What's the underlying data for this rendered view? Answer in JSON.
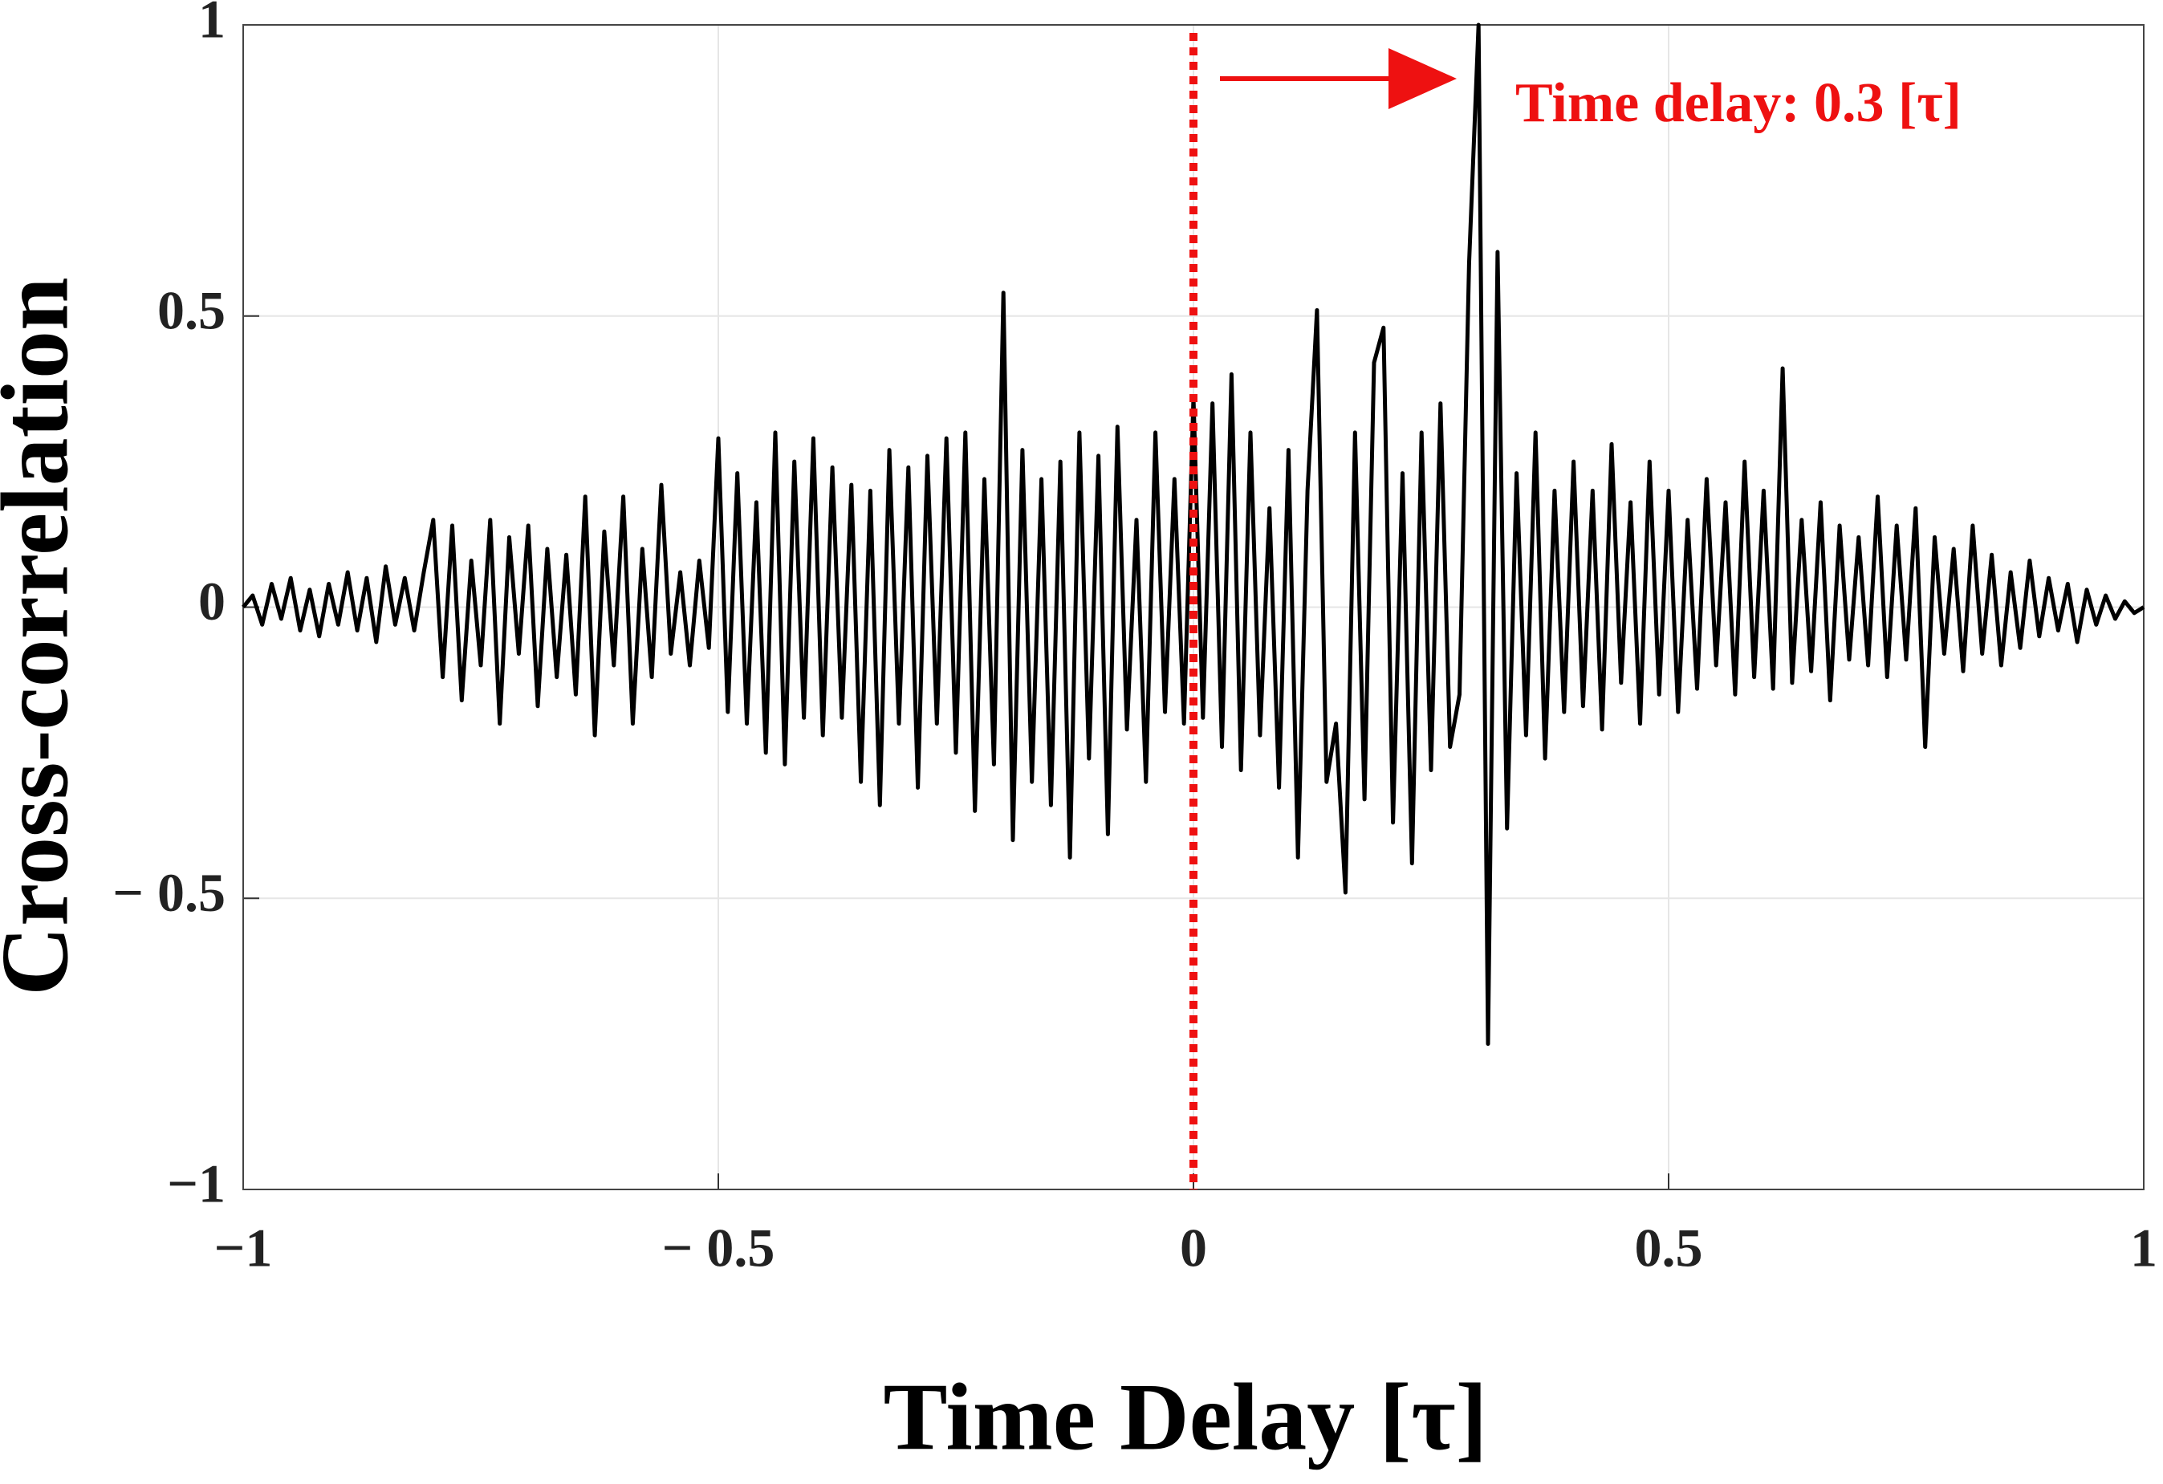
{
  "chart_data": {
    "type": "line",
    "xlabel": "Time Delay [τ]",
    "ylabel": "Cross-correlation",
    "annotation": "Time delay: 0.3 [τ]",
    "annotation_color": "#ee1111",
    "vline": 0,
    "vline_color": "#ee1111",
    "grid": true,
    "xlim": [
      -1,
      1
    ],
    "ylim": [
      -1,
      1
    ],
    "xticks": [
      {
        "value": -1,
        "label": "−1"
      },
      {
        "value": -0.5,
        "label": "− 0.5"
      },
      0,
      0.5,
      1
    ],
    "yticks": [
      {
        "value": -1,
        "label": "−1"
      },
      {
        "value": -0.5,
        "label": "− 0.5"
      },
      0,
      0.5,
      1
    ],
    "x": [
      -1,
      -0.99,
      -0.98,
      -0.97,
      -0.96,
      -0.95,
      -0.94,
      -0.93,
      -0.92,
      -0.91,
      -0.9,
      -0.89,
      -0.88,
      -0.87,
      -0.86,
      -0.85,
      -0.84,
      -0.83,
      -0.82,
      -0.81,
      -0.8,
      -0.79,
      -0.78,
      -0.77,
      -0.76,
      -0.75,
      -0.74,
      -0.73,
      -0.72,
      -0.71,
      -0.7,
      -0.69,
      -0.68,
      -0.67,
      -0.66,
      -0.65,
      -0.64,
      -0.63,
      -0.62,
      -0.61,
      -0.6,
      -0.59,
      -0.58,
      -0.57,
      -0.56,
      -0.55,
      -0.54,
      -0.53,
      -0.52,
      -0.51,
      -0.5,
      -0.49,
      -0.48,
      -0.47,
      -0.46,
      -0.45,
      -0.44,
      -0.43,
      -0.42,
      -0.41,
      -0.4,
      -0.39,
      -0.38,
      -0.37,
      -0.36,
      -0.35,
      -0.34,
      -0.33,
      -0.32,
      -0.31,
      -0.3,
      -0.29,
      -0.28,
      -0.27,
      -0.26,
      -0.25,
      -0.24,
      -0.23,
      -0.22,
      -0.21,
      -0.2,
      -0.19,
      -0.18,
      -0.17,
      -0.16,
      -0.15,
      -0.14,
      -0.13,
      -0.12,
      -0.11,
      -0.1,
      -0.09,
      -0.08,
      -0.07,
      -0.06,
      -0.05,
      -0.04,
      -0.03,
      -0.02,
      -0.01,
      0,
      0.01,
      0.02,
      0.03,
      0.04,
      0.05,
      0.06,
      0.07,
      0.08,
      0.09,
      0.1,
      0.11,
      0.12,
      0.13,
      0.14,
      0.15,
      0.16,
      0.17,
      0.18,
      0.19,
      0.2,
      0.21,
      0.22,
      0.23,
      0.24,
      0.25,
      0.26,
      0.27,
      0.28,
      0.29,
      0.3,
      0.31,
      0.32,
      0.33,
      0.34,
      0.35,
      0.36,
      0.37,
      0.38,
      0.39,
      0.4,
      0.41,
      0.42,
      0.43,
      0.44,
      0.45,
      0.46,
      0.47,
      0.48,
      0.49,
      0.5,
      0.51,
      0.52,
      0.53,
      0.54,
      0.55,
      0.56,
      0.57,
      0.58,
      0.59,
      0.6,
      0.61,
      0.62,
      0.63,
      0.64,
      0.65,
      0.66,
      0.67,
      0.68,
      0.69,
      0.7,
      0.71,
      0.72,
      0.73,
      0.74,
      0.75,
      0.76,
      0.77,
      0.78,
      0.79,
      0.8,
      0.81,
      0.82,
      0.83,
      0.84,
      0.85,
      0.86,
      0.87,
      0.88,
      0.89,
      0.9,
      0.91,
      0.92,
      0.93,
      0.94,
      0.95,
      0.96,
      0.97,
      0.98,
      0.99,
      1
    ],
    "series": [
      {
        "color": "#000000",
        "values": [
          0,
          0.02,
          -0.03,
          0.04,
          -0.02,
          0.05,
          -0.04,
          0.03,
          -0.05,
          0.04,
          -0.03,
          0.06,
          -0.04,
          0.05,
          -0.06,
          0.07,
          -0.03,
          0.05,
          -0.04,
          0.06,
          0.15,
          -0.12,
          0.14,
          -0.16,
          0.08,
          -0.1,
          0.15,
          -0.2,
          0.12,
          -0.08,
          0.14,
          -0.17,
          0.1,
          -0.12,
          0.09,
          -0.15,
          0.19,
          -0.22,
          0.13,
          -0.1,
          0.19,
          -0.2,
          0.1,
          -0.12,
          0.21,
          -0.08,
          0.06,
          -0.1,
          0.08,
          -0.07,
          0.29,
          -0.18,
          0.23,
          -0.2,
          0.18,
          -0.25,
          0.3,
          -0.27,
          0.25,
          -0.19,
          0.29,
          -0.22,
          0.24,
          -0.19,
          0.21,
          -0.3,
          0.2,
          -0.34,
          0.27,
          -0.2,
          0.24,
          -0.31,
          0.26,
          -0.2,
          0.29,
          -0.25,
          0.3,
          -0.35,
          0.22,
          -0.27,
          0.54,
          -0.4,
          0.27,
          -0.3,
          0.22,
          -0.34,
          0.25,
          -0.43,
          0.3,
          -0.26,
          0.26,
          -0.39,
          0.31,
          -0.21,
          0.15,
          -0.3,
          0.3,
          -0.18,
          0.22,
          -0.2,
          0.36,
          -0.19,
          0.35,
          -0.24,
          0.4,
          -0.28,
          0.3,
          -0.22,
          0.17,
          -0.31,
          0.27,
          -0.43,
          0.2,
          0.51,
          -0.3,
          -0.2,
          -0.49,
          0.3,
          -0.33,
          0.42,
          0.48,
          -0.37,
          0.23,
          -0.44,
          0.3,
          -0.28,
          0.35,
          -0.24,
          -0.15,
          0.59,
          1,
          -0.75,
          0.61,
          -0.38,
          0.23,
          -0.22,
          0.3,
          -0.26,
          0.2,
          -0.18,
          0.25,
          -0.17,
          0.2,
          -0.21,
          0.28,
          -0.13,
          0.18,
          -0.2,
          0.25,
          -0.15,
          0.2,
          -0.18,
          0.15,
          -0.14,
          0.22,
          -0.1,
          0.18,
          -0.15,
          0.25,
          -0.12,
          0.2,
          -0.14,
          0.41,
          -0.13,
          0.15,
          -0.11,
          0.18,
          -0.16,
          0.14,
          -0.09,
          0.12,
          -0.1,
          0.19,
          -0.12,
          0.14,
          -0.09,
          0.17,
          -0.24,
          0.12,
          -0.08,
          0.1,
          -0.11,
          0.14,
          -0.08,
          0.09,
          -0.1,
          0.06,
          -0.07,
          0.08,
          -0.05,
          0.05,
          -0.04,
          0.04,
          -0.06,
          0.03,
          -0.03,
          0.02,
          -0.02,
          0.01,
          -0.01,
          0
        ]
      }
    ]
  }
}
